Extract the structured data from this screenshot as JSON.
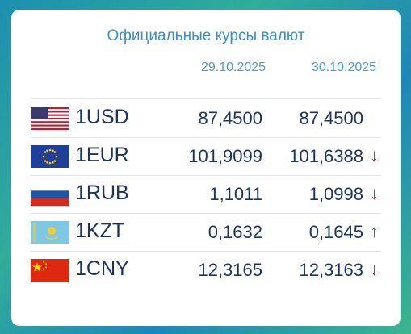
{
  "header": {
    "title": "Официальные курсы валют",
    "dates": [
      "29.10.2025",
      "30.10.2025"
    ]
  },
  "table": {
    "rows": [
      {
        "currency": "1USD",
        "rate1": "87,4500",
        "rate2": "87,4500",
        "trend": null,
        "trend_color": null
      },
      {
        "currency": "1EUR",
        "rate1": "101,9099",
        "rate2": "101,6388",
        "trend": "↓",
        "trend_color": "#c62828"
      },
      {
        "currency": "1RUB",
        "rate1": "1,1011",
        "rate2": "1,0998",
        "trend": "↓",
        "trend_color": "#c62828"
      },
      {
        "currency": "1KZT",
        "rate1": "0,1632",
        "rate2": "0,1645",
        "trend": "↑",
        "trend_color": "#2e7d4f"
      },
      {
        "currency": "1CNY",
        "rate1": "12,3165",
        "rate2": "12,3163",
        "trend": "↓",
        "trend_color": "#c62828"
      }
    ]
  }
}
